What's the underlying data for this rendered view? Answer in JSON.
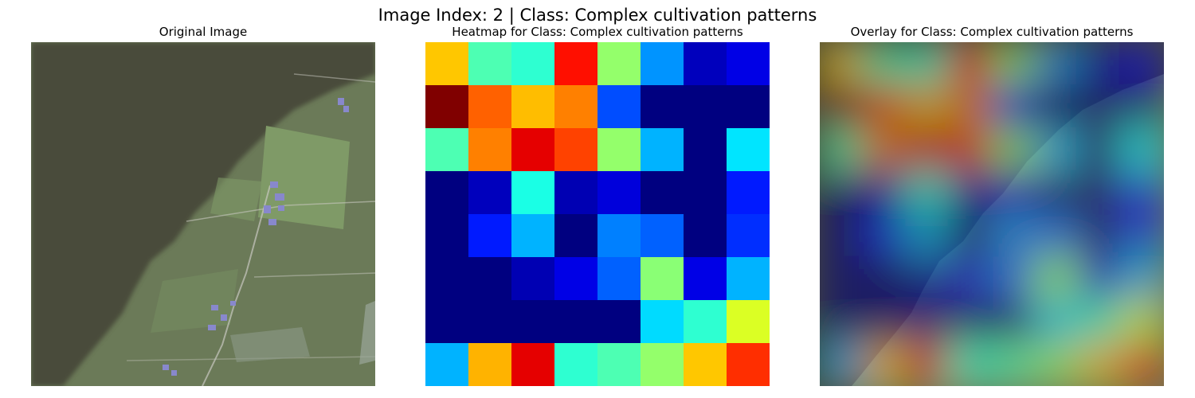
{
  "suptitle": "Image Index: 2 | Class: Complex cultivation patterns",
  "panels": [
    {
      "title": "Original Image"
    },
    {
      "title": "Heatmap for Class: Complex cultivation patterns"
    },
    {
      "title": "Overlay for Class: Complex cultivation patterns"
    }
  ],
  "colors": {
    "forest": "#4a4c3a",
    "field": "#6b7a58",
    "field_light": "#7f9a67",
    "road": "#c8c8c0",
    "building": "#8888cc"
  },
  "chart_data": {
    "type": "heatmap",
    "colormap": "jet",
    "rows": 8,
    "cols": 8,
    "axis": "off",
    "vmin": 0,
    "vmax": 1,
    "values": [
      [
        0.68,
        0.45,
        0.42,
        0.86,
        0.52,
        0.27,
        0.06,
        0.1
      ],
      [
        1.0,
        0.78,
        0.69,
        0.75,
        0.2,
        0.0,
        0.0,
        0.0
      ],
      [
        0.45,
        0.75,
        0.9,
        0.81,
        0.52,
        0.3,
        0.0,
        0.35
      ],
      [
        0.0,
        0.06,
        0.4,
        0.05,
        0.09,
        0.0,
        0.0,
        0.15
      ],
      [
        0.0,
        0.15,
        0.3,
        0.0,
        0.25,
        0.22,
        0.0,
        0.17
      ],
      [
        0.0,
        0.0,
        0.05,
        0.1,
        0.22,
        0.51,
        0.1,
        0.3
      ],
      [
        0.0,
        0.0,
        0.0,
        0.0,
        0.0,
        0.34,
        0.42,
        0.59
      ],
      [
        0.3,
        0.7,
        0.9,
        0.42,
        0.45,
        0.52,
        0.68,
        0.83
      ]
    ]
  }
}
